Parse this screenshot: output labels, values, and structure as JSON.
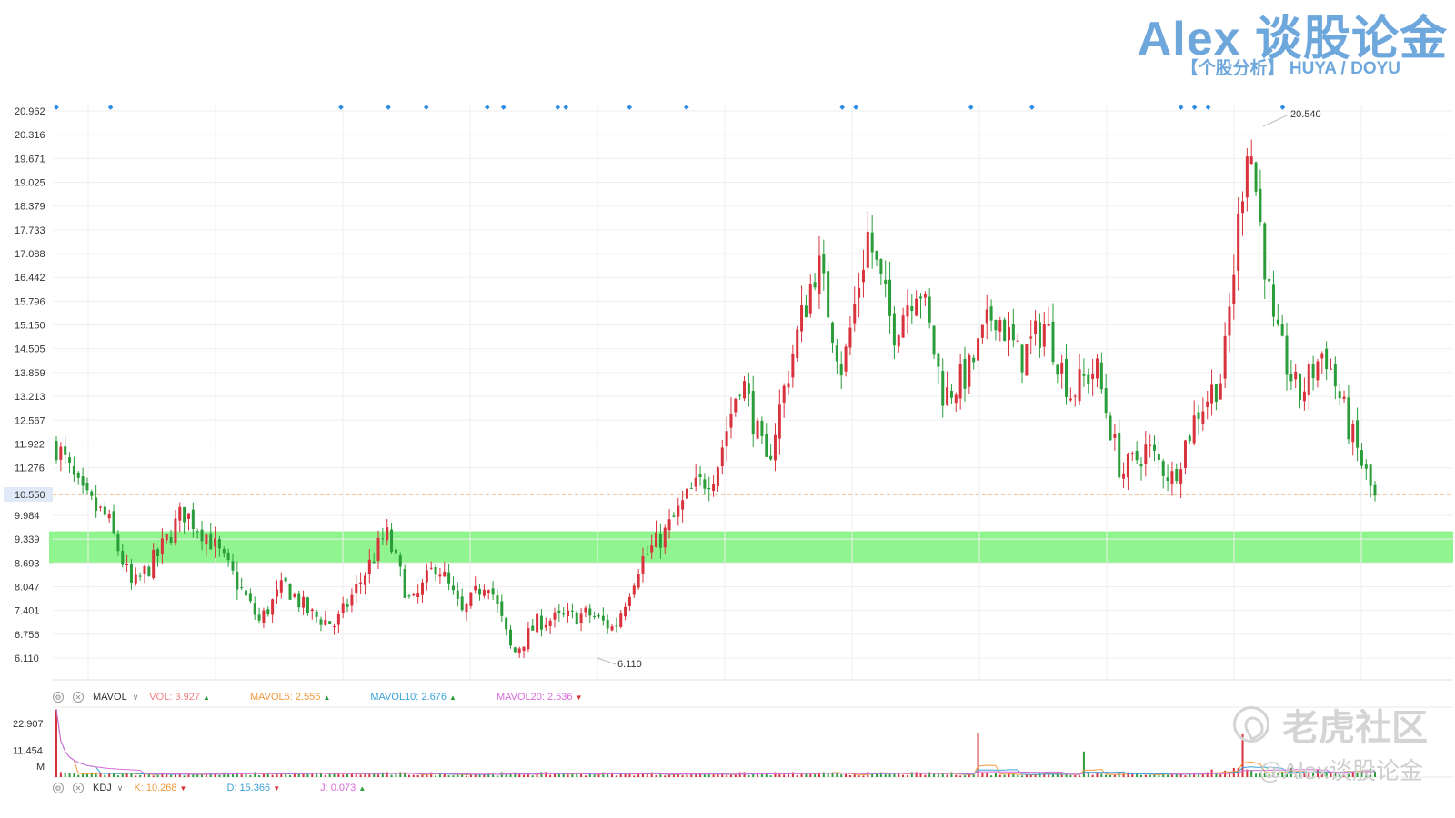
{
  "header": {
    "brand": "Alex 谈股论金",
    "subtitle": "【个股分析】  HUYA / DOYU"
  },
  "colors": {
    "up": "#d8323c",
    "down": "#2a9d3a",
    "support_zone": "#90f58e",
    "current_price_line": "#f08a3a",
    "marker": "#2f8de4"
  },
  "indicators": {
    "mavol": {
      "name": "MAVOL",
      "vol": "VOL: 3.927",
      "mavol5": "MAVOL5: 2.556",
      "mavol10": "MAVOL10: 2.676",
      "mavol20": "MAVOL20: 2.536",
      "colors": {
        "vol": "#f08080",
        "mavol5": "#f39a3d",
        "mavol10": "#3aa3d8",
        "mavol20": "#d96bd9"
      }
    },
    "kdj": {
      "name": "KDJ",
      "k": "K: 10.268",
      "d": "D: 15.366",
      "j": "J: 0.073",
      "colors": {
        "k": "#f39a3d",
        "d": "#3aa3d8",
        "j": "#d96bd9"
      }
    }
  },
  "watermark": {
    "main": "老虎社区",
    "sub": "@Alex谈股论金"
  },
  "chart_data": {
    "type": "candlestick",
    "price_ticks": [
      "20.962",
      "20.316",
      "19.671",
      "19.025",
      "18.379",
      "17.733",
      "17.088",
      "16.442",
      "15.796",
      "15.150",
      "14.505",
      "13.859",
      "13.213",
      "12.567",
      "11.922",
      "11.276",
      "10.550",
      "9.984",
      "9.339",
      "8.693",
      "8.047",
      "7.401",
      "6.756",
      "6.110"
    ],
    "current_price": "10.550",
    "support_zone": [
      8.69,
      9.55
    ],
    "annotations": [
      {
        "label": "20.540",
        "value": 20.54
      },
      {
        "label": "6.110",
        "value": 6.11
      }
    ],
    "anchors": [
      11.9,
      10.5,
      9.9,
      8.0,
      8.9,
      10.1,
      9.4,
      8.3,
      7.1,
      8.1,
      7.3,
      7.0,
      8.2,
      9.5,
      7.5,
      8.7,
      7.3,
      8.3,
      6.2,
      7.1,
      7.2,
      7.3,
      6.9,
      8.7,
      9.5,
      10.6,
      11.2,
      13.8,
      11.3,
      14.3,
      16.9,
      13.9,
      17.6,
      15.0,
      16.4,
      13.2,
      13.9,
      15.6,
      14.2,
      15.2,
      13.3,
      14.0,
      11.1,
      11.8,
      11.0,
      12.8,
      13.8,
      20.5,
      15.0,
      13.2,
      14.5,
      12.3,
      10.4
    ],
    "volume_ticks": [
      "22.907",
      "11.454",
      "M"
    ],
    "volume_ymax": 30,
    "volume_spikes": [
      {
        "pos": 0.0,
        "value": 29
      },
      {
        "pos": 0.7,
        "value": 19
      },
      {
        "pos": 0.78,
        "value": 11
      },
      {
        "pos": 0.9,
        "value": 17
      }
    ]
  }
}
